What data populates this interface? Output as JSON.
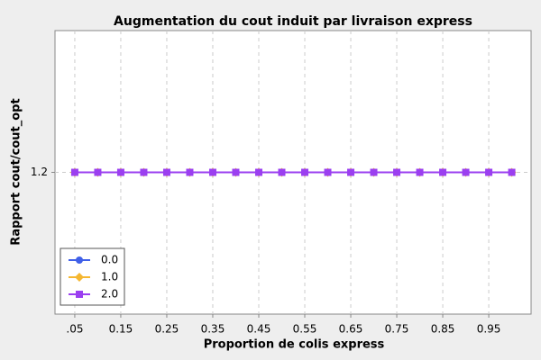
{
  "chart_data": {
    "type": "line",
    "title": "Augmentation du cout induit par livraison express",
    "x_label": "Proportion de colis express",
    "y_label": "Rapport cout/cout_opt",
    "x": [
      0.05,
      0.1,
      0.15,
      0.2,
      0.25,
      0.3,
      0.35,
      0.4,
      0.45,
      0.5,
      0.55,
      0.6,
      0.65,
      0.7,
      0.75,
      0.8,
      0.85,
      0.9,
      0.95,
      1.0
    ],
    "series": [
      {
        "name": "0.0",
        "color": "#4060e8",
        "marker": "circle",
        "values": [
          1.2,
          1.2,
          1.2,
          1.2,
          1.2,
          1.2,
          1.2,
          1.2,
          1.2,
          1.2,
          1.2,
          1.2,
          1.2,
          1.2,
          1.2,
          1.2,
          1.2,
          1.2,
          1.2,
          1.2
        ]
      },
      {
        "name": "1.0",
        "color": "#f5b731",
        "marker": "diamond",
        "values": [
          1.2,
          1.2,
          1.2,
          1.2,
          1.2,
          1.2,
          1.2,
          1.2,
          1.2,
          1.2,
          1.2,
          1.2,
          1.2,
          1.2,
          1.2,
          1.2,
          1.2,
          1.2,
          1.2,
          1.2
        ]
      },
      {
        "name": "2.0",
        "color": "#9b3ff0",
        "marker": "square",
        "values": [
          1.2,
          1.2,
          1.2,
          1.2,
          1.2,
          1.2,
          1.2,
          1.2,
          1.2,
          1.2,
          1.2,
          1.2,
          1.2,
          1.2,
          1.2,
          1.2,
          1.2,
          1.2,
          1.2,
          1.2
        ]
      }
    ],
    "xlim": [
      0.007,
      1.042
    ],
    "xticks": [
      {
        "value": 0.05,
        "label": ".05"
      },
      0.15,
      0.25,
      0.35,
      0.45,
      0.55,
      0.65,
      0.75,
      0.85,
      0.95
    ],
    "ylim": [
      1.1,
      1.3
    ],
    "yticks": [
      1.2
    ],
    "grid": true,
    "legend": "lower-left"
  }
}
